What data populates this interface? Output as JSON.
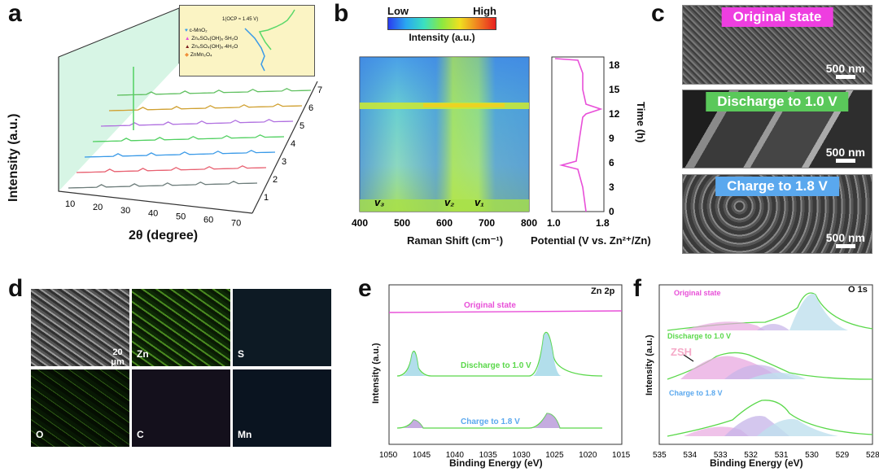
{
  "panel_labels": {
    "a": "a",
    "b": "b",
    "c": "c",
    "d": "d",
    "e": "e",
    "f": "f"
  },
  "panel_a": {
    "ylabel": "Intensity (a.u.)",
    "xlabel": "2θ (degree)",
    "x_ticks": [
      "10",
      "20",
      "30",
      "40",
      "50",
      "60",
      "70"
    ],
    "z_ticks": [
      "1",
      "2",
      "3",
      "4",
      "5",
      "6",
      "7"
    ],
    "legend": [
      {
        "symbol": "♥",
        "label": "c-MnO₂",
        "color": "#3aa0e8"
      },
      {
        "symbol": "▲",
        "label": "Zn₄SO₄(OH)₆·5H₂O",
        "color": "#e84fd8"
      },
      {
        "symbol": "▲",
        "label": "Zn₄SO₄(OH)₆·4H₂O",
        "color": "#7a1a1a"
      },
      {
        "symbol": "◆",
        "label": "ZnMn₂O₄",
        "color": "#f0903a"
      }
    ],
    "inset": {
      "ocp_label": "1(OCP ≈ 1.45 V)",
      "points": [
        "1",
        "2",
        "3",
        "4",
        "5",
        "6",
        "7"
      ]
    },
    "line_colors": [
      "#6c7c7a",
      "#e86070",
      "#3a9ae8",
      "#50d060",
      "#b070e0",
      "#d0a030",
      "#60c060"
    ]
  },
  "panel_b": {
    "colorbar": {
      "low": "Low",
      "high": "High",
      "label": "Intensity (a.u.)"
    },
    "xlabel": "Raman Shift (cm⁻¹)",
    "x_ticks": [
      "400",
      "500",
      "600",
      "700",
      "800"
    ],
    "peak_labels": [
      "v₃",
      "v₂",
      "v₁"
    ],
    "potential_label": "Potential (V vs. Zn²⁺/Zn)",
    "potential_ticks": [
      "1.0",
      "1.8"
    ],
    "time_label": "Time (h)",
    "time_ticks": [
      "0",
      "3",
      "6",
      "9",
      "12",
      "15",
      "18"
    ]
  },
  "panel_c": {
    "images": [
      {
        "banner": "Original state",
        "banner_color": "#ee3ee0",
        "scale": "500 nm"
      },
      {
        "banner": "Discharge to 1.0 V",
        "banner_color": "#5ac85a",
        "scale": "500 nm"
      },
      {
        "banner": "Charge to 1.8 V",
        "banner_color": "#5aa8ee",
        "scale": "500 nm"
      }
    ]
  },
  "panel_d": {
    "scale": "20 μm",
    "tiles": [
      "Zn",
      "S",
      "O",
      "C",
      "Mn"
    ]
  },
  "panel_e": {
    "title": "Zn 2p",
    "ylabel": "Intensity (a.u.)",
    "xlabel": "Binding Energy (eV)",
    "x_ticks": [
      "1050",
      "1045",
      "1040",
      "1035",
      "1030",
      "1025",
      "1020",
      "1015"
    ],
    "labels": [
      "Original state",
      "Discharge to 1.0 V",
      "Charge to 1.8 V"
    ],
    "colors": {
      "original": "#e84fd8",
      "green": "#5ad84a",
      "fill_blue": "#9fd6e6",
      "fill_purple": "#b797d8"
    }
  },
  "panel_f": {
    "title": "O 1s",
    "ylabel": "Intensity (a.u.)",
    "xlabel": "Binding Energy (eV)",
    "x_ticks": [
      "535",
      "534",
      "533",
      "532",
      "531",
      "530",
      "529",
      "528"
    ],
    "labels": [
      "Original state",
      "Discharge to 1.0 V",
      "Charge to 1.8 V"
    ],
    "zsh_label": "ZSH"
  }
}
